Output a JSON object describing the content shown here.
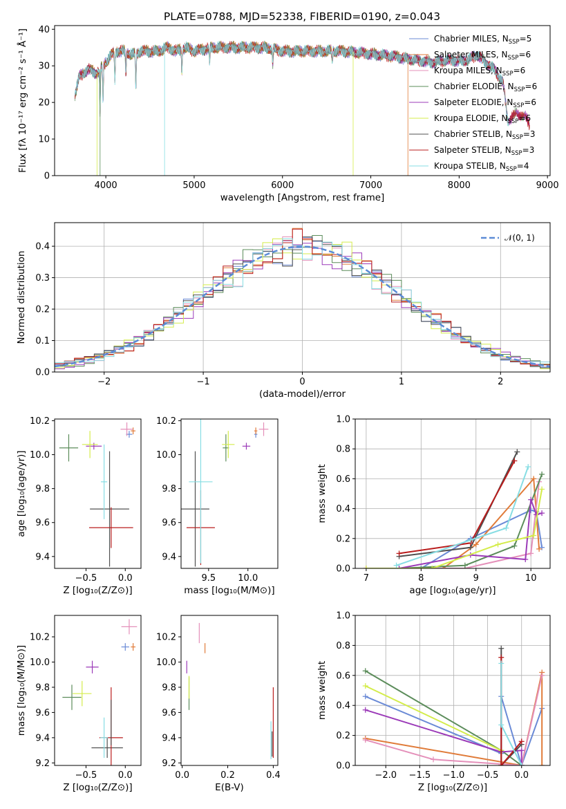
{
  "title": "PLATE=0788, MJD=52338, FIBERID=0190, z=0.043",
  "model_colors": [
    "#6a8ad6",
    "#e07b39",
    "#e48fb9",
    "#5b8c5a",
    "#9b3ab8",
    "#d4ec4a",
    "#505050",
    "#b91c1c",
    "#86dde3"
  ],
  "chart_data": [
    {
      "type": "line",
      "id": "spectrum",
      "xlabel": "wavelength [Angstrom, rest frame]",
      "ylabel": "Flux [fλ 10⁻¹⁷ erg cm⁻² s⁻¹ Å⁻¹]",
      "xlim": [
        3420,
        9030
      ],
      "ylim": [
        0,
        41
      ],
      "xticks": [
        4000,
        5000,
        6000,
        7000,
        8000,
        9000
      ],
      "yticks": [
        0,
        10,
        20,
        30,
        40
      ],
      "legend_loc": "upper right",
      "legend": [
        {
          "text": "Chabrier MILES, N",
          "sub": "SSP",
          "tail": "=5"
        },
        {
          "text": "Salpeter MILES, N",
          "sub": "SSP",
          "tail": "=6"
        },
        {
          "text": "Kroupa MILES, N",
          "sub": "SSP",
          "tail": "=6"
        },
        {
          "text": "Chabrier ELODIE, N",
          "sub": "SSP",
          "tail": "=6"
        },
        {
          "text": "Salpeter ELODIE, N",
          "sub": "SSP",
          "tail": "=6"
        },
        {
          "text": "Kroupa ELODIE, N",
          "sub": "SSP",
          "tail": "=6"
        },
        {
          "text": "Chabrier STELIB, N",
          "sub": "SSP",
          "tail": "=3"
        },
        {
          "text": "Salpeter STELIB, N",
          "sub": "SSP",
          "tail": "=3"
        },
        {
          "text": "Kroupa STELIB, N",
          "sub": "SSP",
          "tail": "=4"
        }
      ],
      "legend_colors": [
        0,
        1,
        2,
        3,
        4,
        5,
        6,
        7,
        8
      ],
      "continuum": [
        [
          3650,
          22
        ],
        [
          3700,
          27
        ],
        [
          3800,
          29
        ],
        [
          3900,
          28
        ],
        [
          4000,
          31
        ],
        [
          4100,
          34
        ],
        [
          4200,
          34
        ],
        [
          4300,
          33
        ],
        [
          4400,
          34
        ],
        [
          4500,
          34
        ],
        [
          4600,
          34
        ],
        [
          4700,
          35
        ],
        [
          4800,
          34
        ],
        [
          4900,
          35
        ],
        [
          5000,
          34
        ],
        [
          5200,
          35
        ],
        [
          5500,
          35
        ],
        [
          5800,
          35
        ],
        [
          6000,
          34
        ],
        [
          6200,
          34
        ],
        [
          6500,
          34
        ],
        [
          6700,
          34
        ],
        [
          6900,
          33.5
        ],
        [
          7100,
          33
        ],
        [
          7300,
          32.5
        ],
        [
          7500,
          31.5
        ],
        [
          7700,
          31
        ],
        [
          7900,
          31.5
        ],
        [
          8100,
          31.5
        ],
        [
          8200,
          33
        ],
        [
          8300,
          31
        ],
        [
          8400,
          29
        ],
        [
          8500,
          25
        ],
        [
          8550,
          15
        ],
        [
          8650,
          17
        ],
        [
          8750,
          16
        ],
        [
          8800,
          14
        ]
      ],
      "absorptions": [
        [
          3934,
          12
        ],
        [
          3968,
          10
        ],
        [
          4102,
          8
        ],
        [
          4227,
          6
        ],
        [
          4340,
          10
        ],
        [
          4861,
          6
        ],
        [
          5175,
          4
        ],
        [
          5890,
          4
        ],
        [
          6563,
          3
        ]
      ],
      "spectrum_ranges": [
        {
          "model": 0,
          "x": [
            3650,
            8550
          ]
        },
        {
          "model": 1,
          "x": [
            3650,
            7420
          ]
        },
        {
          "model": 2,
          "x": [
            3650,
            8800
          ]
        },
        {
          "model": 3,
          "x": [
            3650,
            8800
          ]
        },
        {
          "model": 4,
          "x": [
            3650,
            8800
          ]
        },
        {
          "model": 5,
          "x": [
            3900,
            6800
          ]
        },
        {
          "model": 6,
          "x": [
            3650,
            8550
          ]
        },
        {
          "model": 7,
          "x": [
            3650,
            8800
          ]
        },
        {
          "model": 8,
          "x": [
            3650,
            8560
          ]
        }
      ],
      "drops": [
        {
          "x": 4665,
          "model": 8
        },
        {
          "x": 6800,
          "model": 5
        },
        {
          "x": 7420,
          "model": 1
        },
        {
          "x": 3900,
          "model": 5
        },
        {
          "x": 3935,
          "model": 3
        }
      ]
    },
    {
      "type": "step",
      "id": "residual-hist",
      "xlabel": "(data-model)/error",
      "ylabel": "Normed distribution",
      "xlim": [
        -2.5,
        2.5
      ],
      "ylim": [
        0,
        0.475
      ],
      "xticks": [
        -2,
        -1,
        0,
        1,
        2
      ],
      "yticks": [
        0.0,
        0.1,
        0.2,
        0.3,
        0.4
      ],
      "grid": true,
      "bin_width": 0.1,
      "reference": {
        "label": "𝒩(0, 1)",
        "type": "gaussian",
        "mean": 0,
        "sigma": 1,
        "style": "dashed"
      },
      "legend_loc": "upper right"
    },
    {
      "type": "errorbar",
      "id": "age-vs-Z",
      "xlabel": "Z [log₁₀(Z/Z⊙)]",
      "ylabel": "age [log₁₀(age/yr)]",
      "xlim": [
        -0.9,
        0.2
      ],
      "ylim": [
        9.33,
        10.21
      ],
      "xticks": [
        -0.5,
        0.0
      ],
      "yticks": [
        9.4,
        9.6,
        9.8,
        10.0,
        10.2
      ],
      "points": [
        {
          "model": 0,
          "x": 0.05,
          "y": 10.12,
          "xerr": 0.04,
          "yerr": 0.02
        },
        {
          "model": 1,
          "x": 0.1,
          "y": 10.14,
          "xerr": 0.03,
          "yerr": 0.02
        },
        {
          "model": 2,
          "x": 0.02,
          "y": 10.15,
          "xerr": 0.08,
          "yerr": 0.04
        },
        {
          "model": 3,
          "x": -0.72,
          "y": 10.04,
          "xerr": 0.12,
          "yerr": 0.08
        },
        {
          "model": 4,
          "x": -0.4,
          "y": 10.05,
          "xerr": 0.1,
          "yerr": 0.02
        },
        {
          "model": 5,
          "x": -0.45,
          "y": 10.06,
          "xerr": 0.1,
          "yerr": 0.08
        },
        {
          "model": 6,
          "x": -0.2,
          "y": 9.68,
          "xerr": 0.25,
          "yerr": 0.34
        },
        {
          "model": 7,
          "x": -0.18,
          "y": 9.57,
          "xerr": 0.28,
          "yerr": 0.12
        },
        {
          "model": 8,
          "x": -0.27,
          "y": 9.84,
          "xerr": 0.04,
          "yerr": 0.22
        }
      ]
    },
    {
      "type": "errorbar",
      "id": "age-vs-mass",
      "xlabel": "mass [log₁₀(M/M⊙)]",
      "ylabel": "",
      "xlim": [
        9.15,
        10.38
      ],
      "ylim": [
        9.33,
        10.21
      ],
      "xticks": [
        9.5,
        10.0
      ],
      "yticks": [
        9.4,
        9.6,
        9.8,
        10.0,
        10.2
      ],
      "points": [
        {
          "model": 0,
          "x": 10.1,
          "y": 10.12,
          "xerr": 0.02,
          "yerr": 0.02
        },
        {
          "model": 1,
          "x": 10.1,
          "y": 10.14,
          "xerr": 0.02,
          "yerr": 0.02
        },
        {
          "model": 2,
          "x": 10.2,
          "y": 10.15,
          "xerr": 0.06,
          "yerr": 0.04
        },
        {
          "model": 3,
          "x": 9.72,
          "y": 10.04,
          "xerr": 0.04,
          "yerr": 0.08
        },
        {
          "model": 4,
          "x": 9.98,
          "y": 10.05,
          "xerr": 0.05,
          "yerr": 0.02
        },
        {
          "model": 5,
          "x": 9.75,
          "y": 10.06,
          "xerr": 0.08,
          "yerr": 0.08
        },
        {
          "model": 6,
          "x": 9.33,
          "y": 9.68,
          "xerr": 0.18,
          "yerr": 0.34
        },
        {
          "model": 7,
          "x": 9.4,
          "y": 9.57,
          "xerr": 0.18,
          "yerr": 0.22
        },
        {
          "model": 8,
          "x": 9.4,
          "y": 9.84,
          "xerr": 0.15,
          "yerr": 0.48
        }
      ]
    },
    {
      "type": "line",
      "id": "mass-weight-vs-age",
      "xlabel": "age [log₁₀(age/yr)]",
      "ylabel": "mass weight",
      "xlim": [
        6.8,
        10.35
      ],
      "ylim": [
        0,
        1
      ],
      "xticks": [
        7,
        8,
        9,
        10
      ],
      "yticks": [
        0.0,
        0.2,
        0.4,
        0.6,
        0.8,
        1.0
      ],
      "grid": true,
      "marker": "+",
      "series": [
        {
          "model": 0,
          "x": [
            8.0,
            8.9,
            10.0,
            10.1,
            10.2
          ],
          "y": [
            0.0,
            0.2,
            0.39,
            0.38,
            0.14
          ]
        },
        {
          "model": 1,
          "x": [
            7.0,
            8.4,
            9.0,
            10.05,
            10.15
          ],
          "y": [
            0.0,
            0.0,
            0.16,
            0.6,
            0.13
          ]
        },
        {
          "model": 2,
          "x": [
            7.0,
            8.8,
            10.0,
            10.15
          ],
          "y": [
            0.0,
            0.0,
            0.1,
            0.58
          ]
        },
        {
          "model": 3,
          "x": [
            7.6,
            8.8,
            9.7,
            10.2
          ],
          "y": [
            0.0,
            0.02,
            0.15,
            0.63
          ]
        },
        {
          "model": 4,
          "x": [
            7.6,
            8.9,
            9.9,
            10.0,
            10.1,
            10.2
          ],
          "y": [
            0.0,
            0.09,
            0.06,
            0.46,
            0.36,
            0.37
          ]
        },
        {
          "model": 5,
          "x": [
            7.0,
            8.2,
            9.4,
            10.05,
            10.2
          ],
          "y": [
            0.0,
            0.0,
            0.16,
            0.22,
            0.53
          ]
        },
        {
          "model": 6,
          "x": [
            7.6,
            8.9,
            9.75
          ],
          "y": [
            0.08,
            0.14,
            0.78
          ]
        },
        {
          "model": 7,
          "x": [
            7.6,
            8.9,
            9.7
          ],
          "y": [
            0.1,
            0.17,
            0.72
          ]
        },
        {
          "model": 8,
          "x": [
            7.55,
            8.9,
            9.55,
            9.95
          ],
          "y": [
            0.02,
            0.19,
            0.27,
            0.68
          ]
        }
      ]
    },
    {
      "type": "errorbar",
      "id": "mass-vs-Z",
      "xlabel": "Z [log₁₀(Z/Z⊙)]",
      "ylabel": "mass [log₁₀(M/M⊙)]",
      "xlim": [
        -0.9,
        0.2
      ],
      "ylim": [
        9.18,
        10.37
      ],
      "xticks": [
        -0.5,
        0.0
      ],
      "yticks": [
        9.2,
        9.4,
        9.6,
        9.8,
        10.0,
        10.2
      ],
      "points": [
        {
          "model": 0,
          "x": 0.0,
          "y": 10.12,
          "xerr": 0.05,
          "yerr": 0.03
        },
        {
          "model": 1,
          "x": 0.1,
          "y": 10.12,
          "xerr": 0.03,
          "yerr": 0.03
        },
        {
          "model": 2,
          "x": 0.05,
          "y": 10.28,
          "xerr": 0.1,
          "yerr": 0.06
        },
        {
          "model": 3,
          "x": -0.68,
          "y": 9.72,
          "xerr": 0.12,
          "yerr": 0.1
        },
        {
          "model": 4,
          "x": -0.42,
          "y": 9.96,
          "xerr": 0.08,
          "yerr": 0.05
        },
        {
          "model": 5,
          "x": -0.55,
          "y": 9.75,
          "xerr": 0.12,
          "yerr": 0.1
        },
        {
          "model": 6,
          "x": -0.23,
          "y": 9.32,
          "xerr": 0.2,
          "yerr": 0.08
        },
        {
          "model": 7,
          "x": -0.18,
          "y": 9.4,
          "xerr": 0.15,
          "yerr": 0.4
        },
        {
          "model": 8,
          "x": -0.27,
          "y": 9.4,
          "xerr": 0.05,
          "yerr": 0.16
        },
        {
          "model": 6,
          "x": -0.18,
          "y": 9.52,
          "xerr": 0.0,
          "yerr": 0.18
        }
      ]
    },
    {
      "type": "errorbar",
      "id": "mass-vs-EBV",
      "xlabel": "E(B-V)",
      "ylabel": "",
      "xlim": [
        -0.005,
        0.42
      ],
      "ylim": [
        9.18,
        10.37
      ],
      "xticks": [
        0.0,
        0.2,
        0.4
      ],
      "yticks": [
        9.2,
        9.4,
        9.6,
        9.8,
        10.0,
        10.2
      ],
      "points": [
        {
          "model": 2,
          "x": 0.075,
          "y": 10.23,
          "xerr": 0,
          "yerr": 0.08
        },
        {
          "model": 1,
          "x": 0.1,
          "y": 10.11,
          "xerr": 0,
          "yerr": 0.04
        },
        {
          "model": 4,
          "x": 0.02,
          "y": 9.96,
          "xerr": 0,
          "yerr": 0.05
        },
        {
          "model": 3,
          "x": 0.03,
          "y": 9.75,
          "xerr": 0,
          "yerr": 0.13
        },
        {
          "model": 5,
          "x": 0.03,
          "y": 9.8,
          "xerr": 0,
          "yerr": 0.09
        },
        {
          "model": 7,
          "x": 0.4,
          "y": 9.52,
          "xerr": 0,
          "yerr": 0.28
        },
        {
          "model": 6,
          "x": 0.395,
          "y": 9.35,
          "xerr": 0,
          "yerr": 0.1
        },
        {
          "model": 8,
          "x": 0.39,
          "y": 9.38,
          "xerr": 0,
          "yerr": 0.15
        }
      ]
    },
    {
      "type": "line",
      "id": "mass-weight-vs-Z",
      "xlabel": "Z [log₁₀(Z/Z⊙)]",
      "ylabel": "mass weight",
      "xlim": [
        -2.45,
        0.42
      ],
      "ylim": [
        0,
        1
      ],
      "xticks": [
        -2.0,
        -1.5,
        -1.0,
        -0.5,
        0.0
      ],
      "yticks": [
        0.0,
        0.2,
        0.4,
        0.6,
        0.8,
        1.0
      ],
      "grid": true,
      "marker": "+",
      "series": [
        {
          "model": 0,
          "x": [
            -2.3,
            -0.3,
            -0.3,
            0.0,
            0.3
          ],
          "y": [
            0.46,
            0.08,
            0.46,
            0.0,
            0.38
          ]
        },
        {
          "model": 1,
          "x": [
            -2.3,
            0.0,
            0.3,
            0.3
          ],
          "y": [
            0.18,
            0.0,
            0.62,
            0.0
          ]
        },
        {
          "model": 2,
          "x": [
            -2.3,
            -1.3,
            0.0,
            0.3
          ],
          "y": [
            0.17,
            0.04,
            0.0,
            0.6
          ]
        },
        {
          "model": 3,
          "x": [
            -2.3,
            -0.3,
            0.0
          ],
          "y": [
            0.63,
            0.1,
            0.0
          ]
        },
        {
          "model": 4,
          "x": [
            -2.3,
            -0.3,
            0.0,
            0.0
          ],
          "y": [
            0.37,
            0.09,
            0.1,
            0.0
          ]
        },
        {
          "model": 5,
          "x": [
            -2.3,
            -0.3,
            -0.3
          ],
          "y": [
            0.53,
            0.1,
            0.0
          ]
        },
        {
          "model": 6,
          "x": [
            -0.3,
            -0.3,
            0.0
          ],
          "y": [
            0.78,
            0.0,
            0.14
          ]
        },
        {
          "model": 7,
          "x": [
            -0.3,
            -0.3,
            0.0
          ],
          "y": [
            0.72,
            0.0,
            0.16
          ]
        },
        {
          "model": 8,
          "x": [
            -0.3,
            -0.3,
            0.0
          ],
          "y": [
            0.68,
            0.27,
            0.0
          ]
        }
      ]
    }
  ]
}
